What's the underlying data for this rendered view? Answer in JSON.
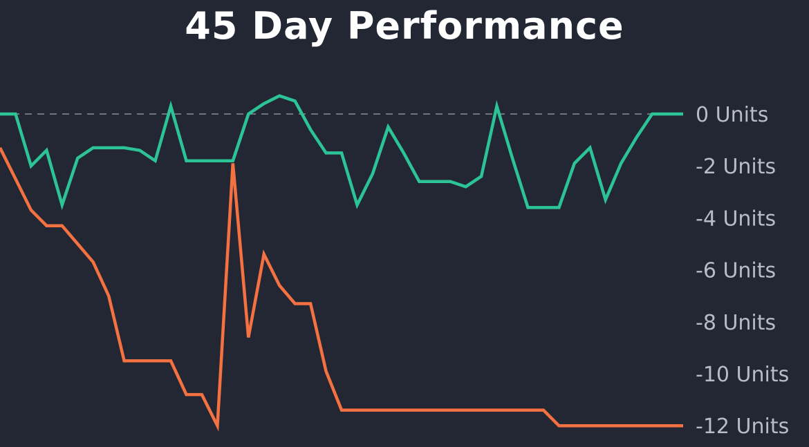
{
  "chart_data": {
    "type": "line",
    "title": "45 Day Performance",
    "xlabel": "",
    "ylabel": "",
    "ylim": [
      -12.4,
      0.8
    ],
    "yticks": [
      {
        "value": 0,
        "label": "0 Units"
      },
      {
        "value": -2,
        "label": "-2 Units"
      },
      {
        "value": -4,
        "label": "-4 Units"
      },
      {
        "value": -6,
        "label": "-6 Units"
      },
      {
        "value": -8,
        "label": "-8 Units"
      },
      {
        "value": -10,
        "label": "-10 Units"
      },
      {
        "value": -12,
        "label": "-12 Units"
      }
    ],
    "reference_line": {
      "value": 0,
      "style": "dashed"
    },
    "grid": false,
    "legend": "none",
    "x": [
      1,
      2,
      3,
      4,
      5,
      6,
      7,
      8,
      9,
      10,
      11,
      12,
      13,
      14,
      15,
      16,
      17,
      18,
      19,
      20,
      21,
      22,
      23,
      24,
      25,
      26,
      27,
      28,
      29,
      30,
      31,
      32,
      33,
      34,
      35,
      36,
      37,
      38,
      39,
      40,
      41,
      42,
      43,
      44,
      45
    ],
    "series": [
      {
        "color": "#2cc497",
        "values": [
          0,
          0,
          -2.0,
          -1.4,
          -3.5,
          -1.7,
          -1.3,
          -1.3,
          -1.3,
          -1.4,
          -1.8,
          0.3,
          -1.8,
          -1.8,
          -1.8,
          -1.8,
          0,
          0.4,
          0.7,
          0.5,
          -0.6,
          -1.5,
          -1.5,
          -3.5,
          -2.3,
          -0.5,
          -1.5,
          -2.6,
          -2.6,
          -2.6,
          -2.8,
          -2.4,
          0.3,
          -1.7,
          -3.6,
          -3.6,
          -3.6,
          -1.9,
          -1.3,
          -3.3,
          -1.9,
          -0.9,
          0,
          0,
          0
        ]
      },
      {
        "color": "#f47142",
        "values": [
          -1.3,
          -2.5,
          -3.7,
          -4.3,
          -4.3,
          -5.0,
          -5.7,
          -7.0,
          -9.5,
          -9.5,
          -9.5,
          -9.5,
          -10.8,
          -10.8,
          -12.0,
          -1.9,
          -8.6,
          -5.4,
          -6.6,
          -7.3,
          -7.3,
          -9.9,
          -11.4,
          -11.4,
          -11.4,
          -11.4,
          -11.4,
          -11.4,
          -11.4,
          -11.4,
          -11.4,
          -11.4,
          -11.4,
          -11.4,
          -11.4,
          -11.4,
          -12.0,
          -12.0,
          -12.0,
          -12.0,
          -12.0,
          -12.0,
          -12.0,
          -12.0,
          -12.0
        ]
      }
    ]
  }
}
